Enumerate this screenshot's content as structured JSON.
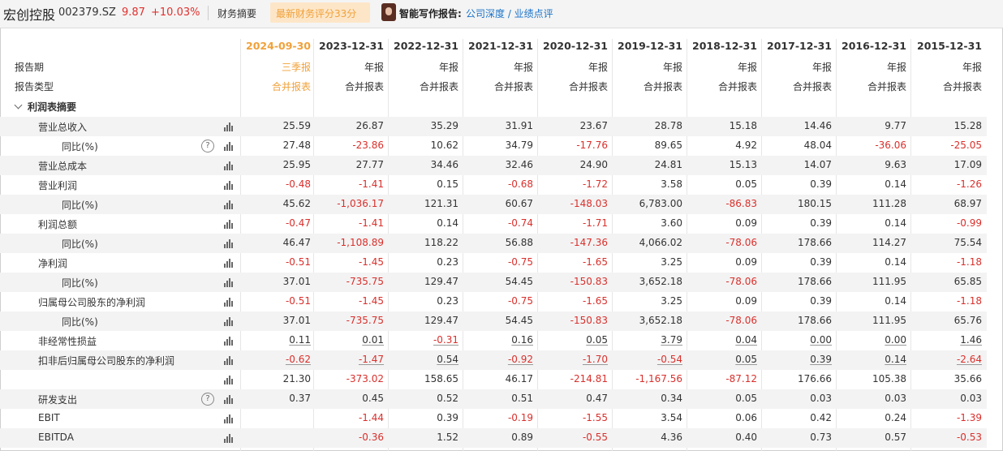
{
  "header": {
    "stock_name": "宏创控股",
    "stock_code": "002379.SZ",
    "price": "9.87",
    "change": "+10.03%",
    "tab_summary": "财务摘要",
    "score_badge": "最新财务评分33分",
    "ai_label": "智能写作报告:",
    "ai_links": "公司深度 / 业绩点评"
  },
  "colors": {
    "negative": "#d9302c",
    "accent": "#f0a13a",
    "link": "#1a73c9"
  },
  "table": {
    "row_label_period": "报告期",
    "row_label_type": "报告类型",
    "section_label": "利润表摘要",
    "columns": [
      {
        "date": "2024-09-30",
        "period": "三季报",
        "type": "合并报表"
      },
      {
        "date": "2023-12-31",
        "period": "年报",
        "type": "合并报表"
      },
      {
        "date": "2022-12-31",
        "period": "年报",
        "type": "合并报表"
      },
      {
        "date": "2021-12-31",
        "period": "年报",
        "type": "合并报表"
      },
      {
        "date": "2020-12-31",
        "period": "年报",
        "type": "合并报表"
      },
      {
        "date": "2019-12-31",
        "period": "年报",
        "type": "合并报表"
      },
      {
        "date": "2018-12-31",
        "period": "年报",
        "type": "合并报表"
      },
      {
        "date": "2017-12-31",
        "period": "年报",
        "type": "合并报表"
      },
      {
        "date": "2016-12-31",
        "period": "年报",
        "type": "合并报表"
      },
      {
        "date": "2015-12-31",
        "period": "年报",
        "type": "合并报表"
      }
    ],
    "rows": [
      {
        "label": "营业总收入",
        "indent": 1,
        "help": false,
        "values": [
          "25.59",
          "26.87",
          "35.29",
          "31.91",
          "23.67",
          "28.78",
          "15.18",
          "14.46",
          "9.77",
          "15.28"
        ]
      },
      {
        "label": "同比(%)",
        "indent": 2,
        "help": true,
        "values": [
          "27.48",
          "-23.86",
          "10.62",
          "34.79",
          "-17.76",
          "89.65",
          "4.92",
          "48.04",
          "-36.06",
          "-25.05"
        ]
      },
      {
        "label": "营业总成本",
        "indent": 1,
        "help": false,
        "values": [
          "25.95",
          "27.77",
          "34.46",
          "32.46",
          "24.90",
          "24.81",
          "15.13",
          "14.07",
          "9.63",
          "17.09"
        ]
      },
      {
        "label": "营业利润",
        "indent": 1,
        "help": false,
        "values": [
          "-0.48",
          "-1.41",
          "0.15",
          "-0.68",
          "-1.72",
          "3.58",
          "0.05",
          "0.39",
          "0.14",
          "-1.26"
        ]
      },
      {
        "label": "同比(%)",
        "indent": 2,
        "help": false,
        "values": [
          "45.62",
          "-1,036.17",
          "121.31",
          "60.67",
          "-148.03",
          "6,783.00",
          "-86.83",
          "180.15",
          "111.28",
          "68.97"
        ]
      },
      {
        "label": "利润总额",
        "indent": 1,
        "help": false,
        "values": [
          "-0.47",
          "-1.41",
          "0.14",
          "-0.74",
          "-1.71",
          "3.60",
          "0.09",
          "0.39",
          "0.14",
          "-0.99"
        ]
      },
      {
        "label": "同比(%)",
        "indent": 2,
        "help": false,
        "values": [
          "46.47",
          "-1,108.89",
          "118.22",
          "56.88",
          "-147.36",
          "4,066.02",
          "-78.06",
          "178.66",
          "114.27",
          "75.54"
        ]
      },
      {
        "label": "净利润",
        "indent": 1,
        "help": false,
        "values": [
          "-0.51",
          "-1.45",
          "0.23",
          "-0.75",
          "-1.65",
          "3.25",
          "0.09",
          "0.39",
          "0.14",
          "-1.18"
        ]
      },
      {
        "label": "同比(%)",
        "indent": 2,
        "help": false,
        "values": [
          "37.01",
          "-735.75",
          "129.47",
          "54.45",
          "-150.83",
          "3,652.18",
          "-78.06",
          "178.66",
          "111.95",
          "65.85"
        ]
      },
      {
        "label": "归属母公司股东的净利润",
        "indent": 1,
        "help": false,
        "values": [
          "-0.51",
          "-1.45",
          "0.23",
          "-0.75",
          "-1.65",
          "3.25",
          "0.09",
          "0.39",
          "0.14",
          "-1.18"
        ]
      },
      {
        "label": "同比(%)",
        "indent": 2,
        "help": false,
        "values": [
          "37.01",
          "-735.75",
          "129.47",
          "54.45",
          "-150.83",
          "3,652.18",
          "-78.06",
          "178.66",
          "111.95",
          "65.76"
        ]
      },
      {
        "label": "非经常性损益",
        "indent": 1,
        "help": false,
        "underline": true,
        "values": [
          "0.11",
          "0.01",
          "-0.31",
          "0.16",
          "0.05",
          "3.79",
          "0.04",
          "0.00",
          "0.00",
          "1.46"
        ]
      },
      {
        "label": "扣非后归属母公司股东的净利润",
        "indent": 1,
        "help": false,
        "underline": true,
        "values": [
          "-0.62",
          "-1.47",
          "0.54",
          "-0.92",
          "-1.70",
          "-0.54",
          "0.05",
          "0.39",
          "0.14",
          "-2.64"
        ]
      },
      {
        "label": "",
        "indent": 2,
        "help": false,
        "values": [
          "21.30",
          "-373.02",
          "158.65",
          "46.17",
          "-214.81",
          "-1,167.56",
          "-87.12",
          "176.66",
          "105.38",
          "35.66"
        ]
      },
      {
        "label": "研发支出",
        "indent": 1,
        "help": true,
        "values": [
          "0.37",
          "0.45",
          "0.52",
          "0.51",
          "0.47",
          "0.34",
          "0.05",
          "0.03",
          "0.03",
          "0.03"
        ]
      },
      {
        "label": "EBIT",
        "indent": 1,
        "help": false,
        "values": [
          "",
          "-1.44",
          "0.39",
          "-0.19",
          "-1.55",
          "3.54",
          "0.06",
          "0.42",
          "0.24",
          "-1.39"
        ]
      },
      {
        "label": "EBITDA",
        "indent": 1,
        "help": false,
        "values": [
          "",
          "-0.36",
          "1.52",
          "0.89",
          "-0.55",
          "4.36",
          "0.40",
          "0.73",
          "0.57",
          "-0.53"
        ]
      }
    ]
  }
}
